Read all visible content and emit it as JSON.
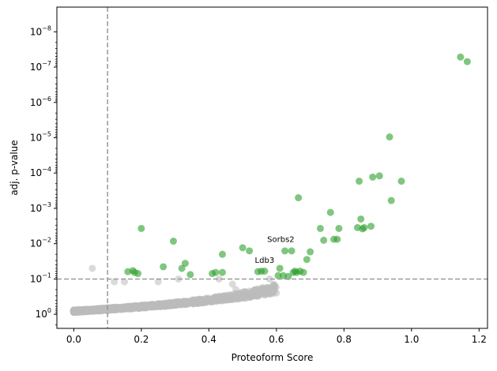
{
  "chart_data": {
    "type": "scatter",
    "title": "",
    "xlabel": "Proteoform Score",
    "ylabel": "adj. p-value",
    "xlim": [
      -0.05,
      1.225
    ],
    "ylim": [
      2.5,
      2e-09
    ],
    "yscale": "log",
    "yaxis_inverted": true,
    "grid": false,
    "legend": "none",
    "x_ticks": [
      "0.0",
      "0.2",
      "0.4",
      "0.6",
      "0.8",
      "1.0",
      "1.2"
    ],
    "x_tick_values": [
      0.0,
      0.2,
      0.4,
      0.6,
      0.8,
      1.0,
      1.2
    ],
    "y_ticks": [
      {
        "base": "10",
        "exp": "0",
        "value": 1
      },
      {
        "base": "10",
        "exp": "−1",
        "value": 0.1
      },
      {
        "base": "10",
        "exp": "−2",
        "value": 0.01
      },
      {
        "base": "10",
        "exp": "−3",
        "value": 0.001
      },
      {
        "base": "10",
        "exp": "−4",
        "value": 0.0001
      },
      {
        "base": "10",
        "exp": "−5",
        "value": 1e-05
      },
      {
        "base": "10",
        "exp": "−6",
        "value": 1e-06
      },
      {
        "base": "10",
        "exp": "−7",
        "value": 1e-07
      },
      {
        "base": "10",
        "exp": "−8",
        "value": 1e-08
      }
    ],
    "thresholds": {
      "x": 0.1,
      "y": 0.1
    },
    "colors": {
      "significant": "#2ca02c",
      "nonsignificant": "#bbbbbb",
      "threshold_line": "#999999"
    },
    "series": [
      {
        "color": "#2ca02c",
        "points": [
          [
            0.16,
            0.062
          ],
          [
            0.175,
            0.058
          ],
          [
            0.18,
            0.065
          ],
          [
            0.19,
            0.07
          ],
          [
            0.2,
            0.0037
          ],
          [
            0.265,
            0.045
          ],
          [
            0.295,
            0.0085
          ],
          [
            0.32,
            0.05
          ],
          [
            0.33,
            0.036
          ],
          [
            0.345,
            0.075
          ],
          [
            0.41,
            0.07
          ],
          [
            0.42,
            0.065
          ],
          [
            0.44,
            0.065
          ],
          [
            0.44,
            0.02
          ],
          [
            0.5,
            0.013
          ],
          [
            0.52,
            0.016
          ],
          [
            0.545,
            0.062
          ],
          [
            0.555,
            0.06
          ],
          [
            0.565,
            0.06
          ],
          [
            0.605,
            0.08
          ],
          [
            0.61,
            0.05
          ],
          [
            0.62,
            0.08
          ],
          [
            0.625,
            0.016
          ],
          [
            0.635,
            0.085
          ],
          [
            0.645,
            0.016
          ],
          [
            0.65,
            0.065
          ],
          [
            0.655,
            0.06
          ],
          [
            0.66,
            0.065
          ],
          [
            0.665,
            0.0005
          ],
          [
            0.67,
            0.06
          ],
          [
            0.68,
            0.065
          ],
          [
            0.69,
            0.028
          ],
          [
            0.7,
            0.017
          ],
          [
            0.73,
            0.0037
          ],
          [
            0.74,
            0.008
          ],
          [
            0.76,
            0.0013
          ],
          [
            0.77,
            0.0075
          ],
          [
            0.78,
            0.0075
          ],
          [
            0.785,
            0.0037
          ],
          [
            0.84,
            0.0035
          ],
          [
            0.845,
            0.00017
          ],
          [
            0.85,
            0.002
          ],
          [
            0.855,
            0.0038
          ],
          [
            0.86,
            0.0035
          ],
          [
            0.88,
            0.0032
          ],
          [
            0.885,
            0.00013
          ],
          [
            0.905,
            0.00012
          ],
          [
            0.935,
            9.5e-06
          ],
          [
            0.94,
            0.0006
          ],
          [
            0.97,
            0.00017
          ],
          [
            1.145,
            5.2e-08
          ],
          [
            1.165,
            7e-08
          ]
        ]
      },
      {
        "color": "#bbbbbb",
        "points": [
          [
            0.055,
            0.05
          ],
          [
            0.12,
            0.12
          ],
          [
            0.15,
            0.12
          ],
          [
            0.25,
            0.12
          ],
          [
            0.31,
            0.1
          ],
          [
            0.43,
            0.1
          ],
          [
            0.47,
            0.14
          ],
          [
            0.48,
            0.2
          ],
          [
            0.58,
            0.1
          ]
        ]
      }
    ],
    "annotations": [
      {
        "text": "Sorbs2",
        "x": 0.613,
        "y": 0.009
      },
      {
        "text": "Ldb3",
        "x": 0.565,
        "y": 0.035
      }
    ]
  }
}
